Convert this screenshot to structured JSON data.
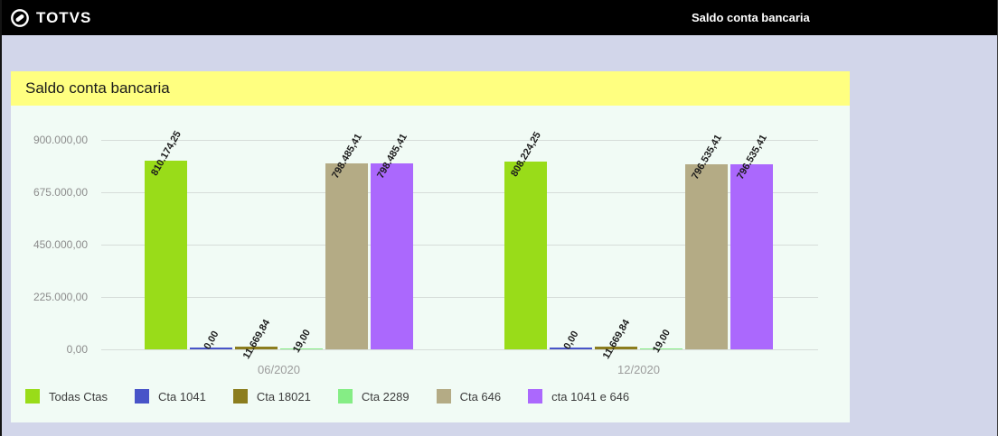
{
  "topbar": {
    "brand": "TOTVS",
    "page_title": "Saldo conta bancaria"
  },
  "panel": {
    "title": "Saldo conta bancaria"
  },
  "chart_data": {
    "type": "bar",
    "title": "Saldo conta bancaria",
    "categories": [
      "06/2020",
      "12/2020"
    ],
    "series": [
      {
        "name": "Todas Ctas",
        "color": "#99dc19",
        "values": [
          810174.25,
          808224.25
        ],
        "labels": [
          "810.174,25",
          "808.224,25"
        ]
      },
      {
        "name": "Cta 1041",
        "color": "#4854c8",
        "values": [
          0,
          0
        ],
        "labels": [
          "0,00",
          "0,00"
        ]
      },
      {
        "name": "Cta 18021",
        "color": "#8c7d1e",
        "values": [
          11669.84,
          11669.84
        ],
        "labels": [
          "11.669,84",
          "11.669,84"
        ]
      },
      {
        "name": "Cta 2289",
        "color": "#85ed85",
        "values": [
          19,
          19
        ],
        "labels": [
          "19,00",
          "19,00"
        ]
      },
      {
        "name": "Cta 646",
        "color": "#b4ab85",
        "values": [
          798485.41,
          796535.41
        ],
        "labels": [
          "798.485,41",
          "796.535,41"
        ]
      },
      {
        "name": "cta 1041 e 646",
        "color": "#ab68fd",
        "values": [
          798485.41,
          796535.41
        ],
        "labels": [
          "798.485,41",
          "796.535,41"
        ]
      }
    ],
    "y_axis": {
      "max": 900000,
      "ticks": [
        0,
        225000,
        450000,
        675000,
        900000
      ],
      "tick_labels": [
        "0,00",
        "225.000,00",
        "450.000,00",
        "675.000,00",
        "900.000,00"
      ]
    },
    "grid": true,
    "legend_position": "bottom"
  }
}
